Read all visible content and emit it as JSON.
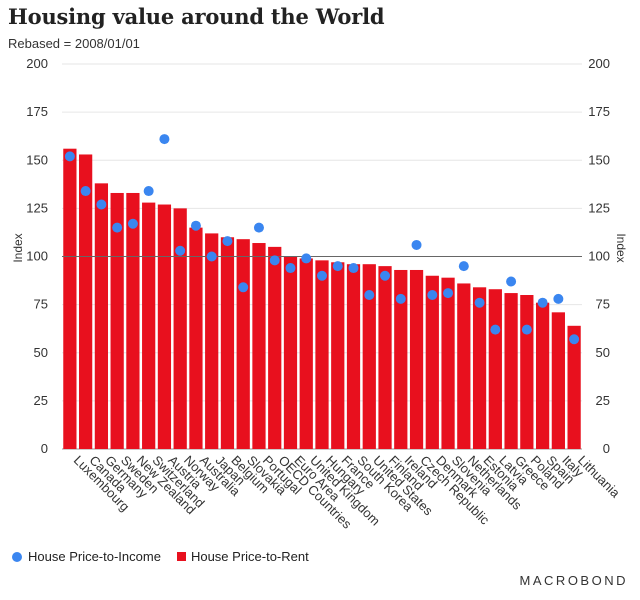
{
  "title": "Housing value around the World",
  "subtitle": "Rebased = 2008/01/01",
  "brand": "MACROBOND",
  "colors": {
    "bar": "#e8101e",
    "dot": "#3a86f0",
    "grid": "#e6e6e6",
    "ref": "#666666"
  },
  "legend": {
    "dot_label": "House Price-to-Income",
    "bar_label": "House Price-to-Rent"
  },
  "chart_data": {
    "type": "bar",
    "ylabel_left": "Index",
    "ylabel_right": "Index",
    "ylim": [
      0,
      200
    ],
    "yticks": [
      0,
      25,
      50,
      75,
      100,
      125,
      150,
      175,
      200
    ],
    "reference_line": 100,
    "grid": true,
    "legend_position": "bottom-left",
    "categories": [
      "Luxembourg",
      "Canada",
      "Germany",
      "Sweden",
      "New Zealand",
      "Switzerland",
      "Austria",
      "Norway",
      "Australia",
      "Japan",
      "Belgium",
      "Slovakia",
      "Portugal",
      "OECD Countries",
      "Euro Area",
      "United Kingdom",
      "Hungary",
      "France",
      "South Korea",
      "United States",
      "Finland",
      "Ireland",
      "Czech Republic",
      "Denmark",
      "Slovenia",
      "Netherlands",
      "Estonia",
      "Latvia",
      "Greece",
      "Poland",
      "Spain",
      "Italy",
      "Lithuania"
    ],
    "series": [
      {
        "name": "House Price-to-Rent",
        "type": "bar",
        "values": [
          156,
          153,
          138,
          133,
          133,
          128,
          127,
          125,
          115,
          112,
          110,
          109,
          107,
          105,
          100,
          99,
          98,
          97,
          96,
          96,
          95,
          93,
          93,
          90,
          89,
          86,
          84,
          83,
          81,
          80,
          76,
          71,
          64
        ]
      },
      {
        "name": "House Price-to-Income",
        "type": "scatter",
        "values": [
          152,
          134,
          127,
          115,
          117,
          134,
          161,
          103,
          116,
          100,
          108,
          84,
          115,
          98,
          94,
          99,
          90,
          95,
          94,
          80,
          90,
          78,
          106,
          80,
          81,
          95,
          76,
          62,
          87,
          62,
          76,
          78,
          57
        ]
      }
    ]
  }
}
